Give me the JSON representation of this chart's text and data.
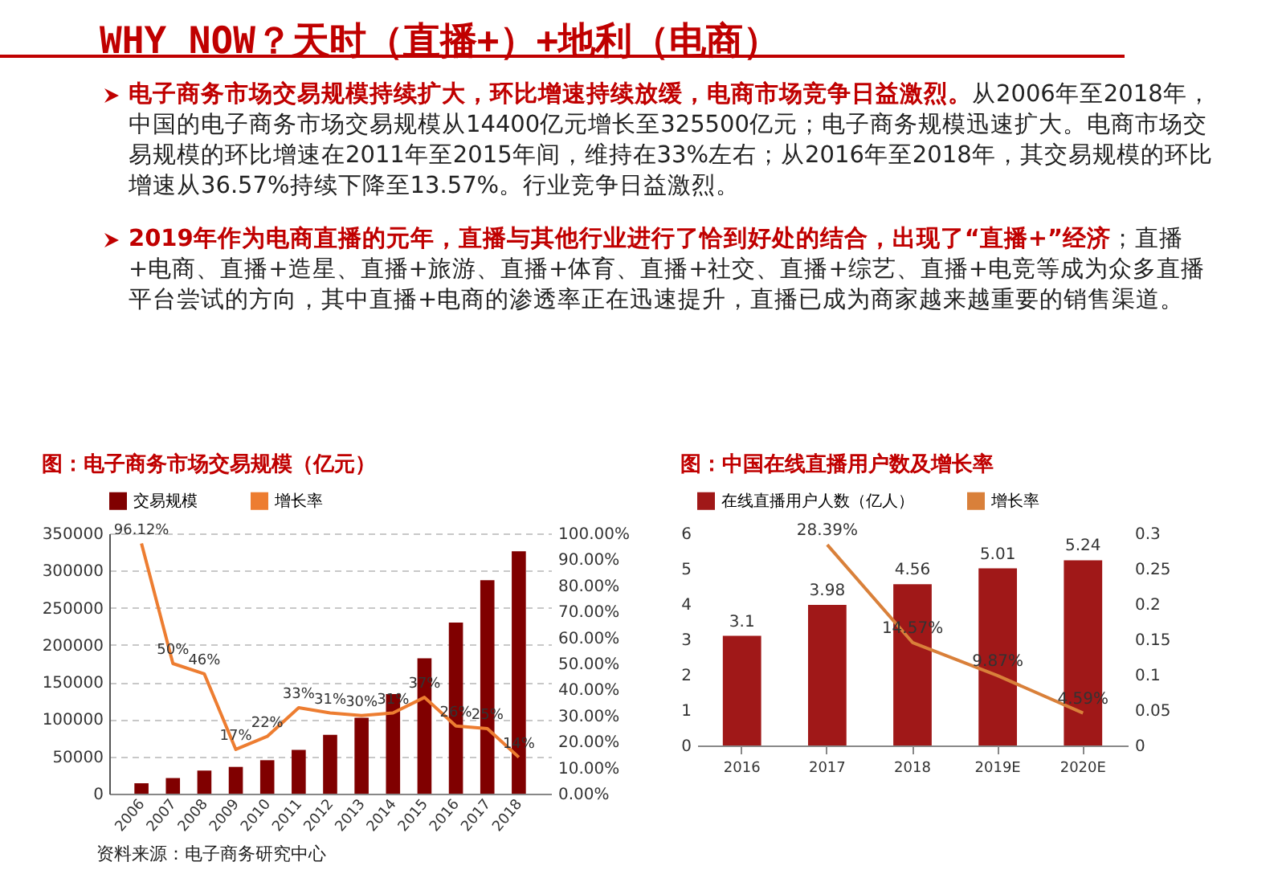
{
  "chart_data": [
    {
      "type": "other",
      "title": "WHY NOW？天时（直播+）+地利（电商）",
      "annotations": [
        "电子商务市场交易规模持续扩大，环比增速持续放缓，电商市场竞争日益激烈。",
        "从2006年至2018年，中国的电子商务市场交易规模从14400亿元增长至325500亿元；电子商务规模迅速扩大。电商市场交易规模的环比增速在2011年至2015年间，维持在33%左右；从2016年至2018年，其交易规模的环比增速从36.57%持续下降至13.57%。行业竞争日益激烈。",
        "2019年作为电商直播的元年，直播与其他行业进行了恰到好处的结合，出现了“直播+”经济",
        "；直播+电商、直播+造星、直播+旅游、直播+体育、直播+社交、直播+综艺、直播+电竞等成为众多直播平台尝试的方向，其中直播+电商的渗透率正在迅速提升，直播已成为商家越来越重要的销售渠道。"
      ]
    },
    {
      "type": "bar",
      "title": "图：电子商务市场交易规模（亿元）",
      "categories": [
        "2006",
        "2007",
        "2008",
        "2009",
        "2010",
        "2011",
        "2012",
        "2013",
        "2014",
        "2015",
        "2016",
        "2017",
        "2018"
      ],
      "series": [
        {
          "name": "交易规模",
          "color": "#800000",
          "values": [
            14000,
            21000,
            31000,
            36000,
            45000,
            59000,
            79000,
            102000,
            134000,
            182000,
            230000,
            287000,
            326000
          ]
        },
        {
          "name": "增长率",
          "type": "line",
          "axis": "y2",
          "color": "#ed7d31",
          "values": [
            96.12,
            50,
            46,
            17,
            22,
            33,
            31,
            30,
            31,
            37,
            26,
            25,
            14
          ],
          "value_labels": [
            "96.12%",
            "50%",
            "46%",
            "17%",
            "22%",
            "33%",
            "31%",
            "30%",
            "31%",
            "37%",
            "26%",
            "25%",
            "14%"
          ]
        }
      ],
      "ylim": [
        0,
        350000
      ],
      "yticks": [
        0,
        50000,
        100000,
        150000,
        200000,
        250000,
        300000,
        350000
      ],
      "y2lim": [
        0,
        100
      ],
      "y2ticks": [
        {
          "value": 0,
          "label": "0.00%"
        },
        {
          "value": 10,
          "label": "10.00%"
        },
        {
          "value": 20,
          "label": "20.00%"
        },
        {
          "value": 30,
          "label": "30.00%"
        },
        {
          "value": 40,
          "label": "40.00%"
        },
        {
          "value": 50,
          "label": "50.00%"
        },
        {
          "value": 60,
          "label": "60.00%"
        },
        {
          "value": 70,
          "label": "70.00%"
        },
        {
          "value": 80,
          "label": "80.00%"
        },
        {
          "value": 90,
          "label": "90.00%"
        },
        {
          "value": 100,
          "label": "100.00%"
        }
      ],
      "grid": "y",
      "legend": "top",
      "annotations": [
        "资料来源：电子商务研究中心"
      ]
    },
    {
      "type": "bar",
      "title": "图：中国在线直播用户数及增长率",
      "categories": [
        "2016",
        "2017",
        "2018",
        "2019E",
        "2020E"
      ],
      "series": [
        {
          "name": "在线直播用户人数（亿人）",
          "color": "#a01818",
          "values": [
            3.1,
            3.98,
            4.56,
            5.01,
            5.24
          ]
        },
        {
          "name": "增长率",
          "type": "line",
          "axis": "y2",
          "color": "#d9803a",
          "values": [
            null,
            0.2839,
            0.1457,
            0.0987,
            0.0459
          ],
          "value_labels": [
            null,
            "28.39%",
            "14.57%",
            "9.87%",
            "4.59%"
          ]
        }
      ],
      "data_labels": true,
      "ylim": [
        0,
        6
      ],
      "yticks": [
        0,
        1,
        2,
        3,
        4,
        5,
        6
      ],
      "y2lim": [
        0,
        0.3
      ],
      "y2ticks": [
        0,
        0.05,
        0.1,
        0.15,
        0.2,
        0.25,
        0.3
      ],
      "legend": "top"
    }
  ]
}
